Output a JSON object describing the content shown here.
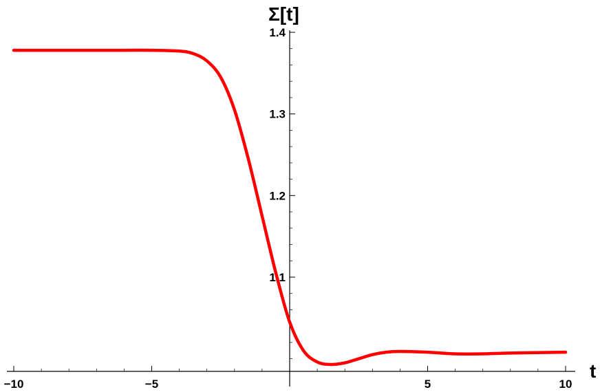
{
  "chart_data": {
    "type": "line",
    "title": "",
    "xlabel": "t",
    "ylabel": "Σ[t]",
    "xlim": [
      -10,
      10
    ],
    "ylim": [
      1.0,
      1.4
    ],
    "x_ticks": [
      -10,
      -5,
      5,
      10
    ],
    "x_tick_labels": [
      "−10",
      "−5",
      "5",
      "10"
    ],
    "y_ticks": [
      1.1,
      1.2,
      1.3,
      1.4
    ],
    "y_tick_labels": [
      "1.1",
      "1.2",
      "1.3",
      "1.4"
    ],
    "grid": false,
    "legend": "none",
    "series": [
      {
        "color": "#ff0000",
        "x": [
          -10,
          -8,
          -6,
          -5,
          -4,
          -3.5,
          -3,
          -2.5,
          -2,
          -1.5,
          -1,
          -0.5,
          0,
          0.5,
          1,
          1.5,
          2,
          2.5,
          3,
          3.5,
          4,
          5,
          6,
          7,
          8,
          10
        ],
        "y": [
          1.378,
          1.378,
          1.378,
          1.378,
          1.377,
          1.374,
          1.365,
          1.345,
          1.305,
          1.245,
          1.175,
          1.105,
          1.045,
          1.01,
          0.996,
          0.993,
          0.995,
          1.0,
          1.005,
          1.008,
          1.009,
          1.008,
          1.006,
          1.006,
          1.007,
          1.008
        ]
      }
    ]
  }
}
